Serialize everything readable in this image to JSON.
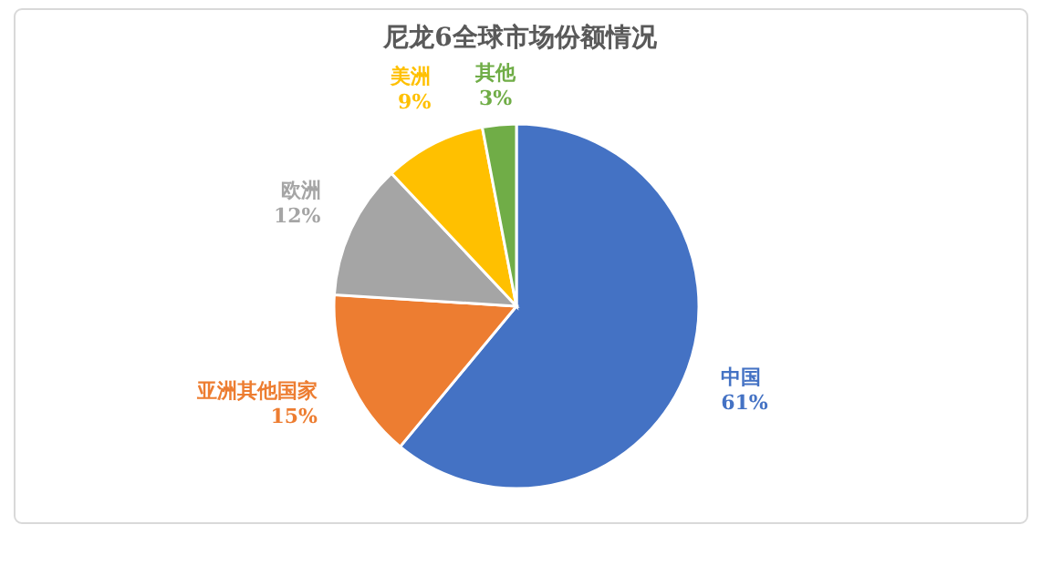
{
  "chart_data": {
    "type": "pie",
    "title": "尼龙6全球市场份额情况",
    "categories": [
      "中国",
      "亚洲其他国家",
      "欧洲",
      "美洲",
      "其他"
    ],
    "values": [
      61,
      15,
      12,
      9,
      3
    ],
    "colors": [
      "#4472c4",
      "#ed7d31",
      "#a5a5a5",
      "#ffc000",
      "#70ad47"
    ],
    "value_labels": [
      "61%",
      "15%",
      "12%",
      "9%",
      "3%"
    ]
  }
}
